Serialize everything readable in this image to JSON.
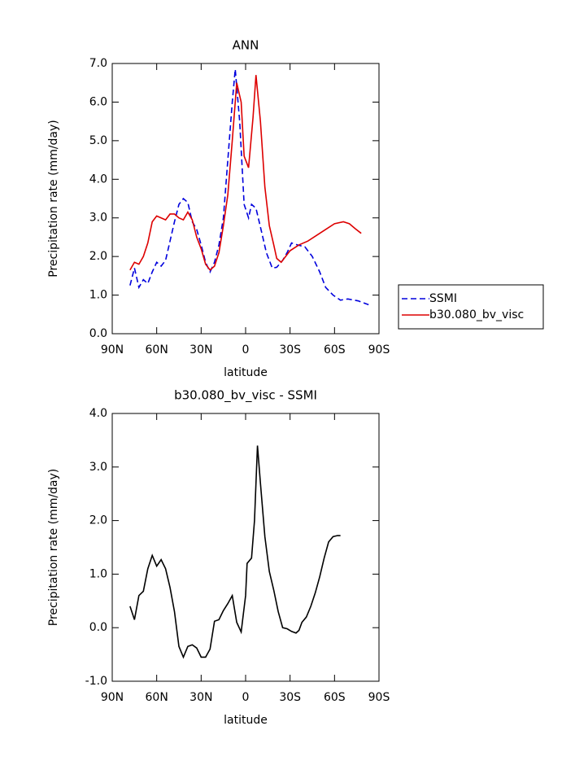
{
  "chart_data": [
    {
      "type": "line",
      "title": "ANN",
      "xlabel": "latitude",
      "ylabel": "Precipitation rate (mm/day)",
      "xlim": [
        90,
        -90
      ],
      "xticks": [
        {
          "value": 90,
          "label": "90N"
        },
        {
          "value": 60,
          "label": "60N"
        },
        {
          "value": 30,
          "label": "30N"
        },
        0,
        {
          "value": -30,
          "label": "30S"
        },
        {
          "value": -60,
          "label": "60S"
        },
        {
          "value": -90,
          "label": "90S"
        }
      ],
      "ylim": [
        0,
        7
      ],
      "yticks": [
        {
          "value": 0,
          "label": "0.0"
        },
        {
          "value": 1,
          "label": "1.0"
        },
        {
          "value": 2,
          "label": "2.0"
        },
        {
          "value": 3,
          "label": "3.0"
        },
        {
          "value": 4,
          "label": "4.0"
        },
        {
          "value": 5,
          "label": "5.0"
        },
        {
          "value": 6,
          "label": "6.0"
        },
        {
          "value": 7,
          "label": "7.0"
        }
      ],
      "legend": "outside right",
      "series": [
        {
          "name": "SSMI",
          "color": "#0000dd",
          "dash": true,
          "x": [
            78,
            75,
            72,
            69,
            66,
            63,
            60,
            57,
            54,
            51,
            48,
            45,
            42,
            39,
            36,
            33,
            30,
            27,
            24,
            21,
            18,
            15,
            12,
            9,
            7,
            4,
            1,
            -2,
            -4,
            -7,
            -11,
            -14,
            -18,
            -21,
            -25,
            -28,
            -31,
            -35,
            -40,
            -45,
            -50,
            -54,
            -59,
            -64,
            -69,
            -76,
            -83
          ],
          "values": [
            1.25,
            1.7,
            1.2,
            1.4,
            1.3,
            1.6,
            1.85,
            1.75,
            1.9,
            2.4,
            2.9,
            3.35,
            3.5,
            3.4,
            2.9,
            2.7,
            2.3,
            1.85,
            1.6,
            1.85,
            2.3,
            3.0,
            4.5,
            6.0,
            6.85,
            5.5,
            3.35,
            3.0,
            3.35,
            3.25,
            2.6,
            2.1,
            1.7,
            1.72,
            1.9,
            2.1,
            2.35,
            2.3,
            2.25,
            2.0,
            1.6,
            1.2,
            1.0,
            0.87,
            0.9,
            0.85,
            0.75
          ]
        },
        {
          "name": "b30.080_bv_visc",
          "color": "#dd0000",
          "dash": false,
          "x": [
            78,
            75,
            72,
            69,
            66,
            63,
            60,
            57,
            54,
            51,
            48,
            45,
            42,
            39,
            36,
            33,
            30,
            27,
            24,
            21,
            18,
            15,
            12,
            9,
            6,
            3,
            1,
            -2,
            -5,
            -7,
            -10,
            -13,
            -16,
            -19,
            -21,
            -24,
            -30,
            -36,
            -42,
            -48,
            -54,
            -60,
            -66,
            -70,
            -74,
            -78
          ],
          "values": [
            1.65,
            1.85,
            1.8,
            2.0,
            2.35,
            2.9,
            3.05,
            3.0,
            2.95,
            3.1,
            3.1,
            3.0,
            2.95,
            3.15,
            2.95,
            2.5,
            2.2,
            1.8,
            1.65,
            1.75,
            2.1,
            2.8,
            3.6,
            5.0,
            6.5,
            6.0,
            4.6,
            4.3,
            5.6,
            6.7,
            5.5,
            3.8,
            2.8,
            2.3,
            1.95,
            1.85,
            2.15,
            2.3,
            2.4,
            2.55,
            2.7,
            2.85,
            2.9,
            2.85,
            2.72,
            2.6
          ]
        }
      ]
    },
    {
      "type": "line",
      "title": "b30.080_bv_visc - SSMI",
      "xlabel": "latitude",
      "ylabel": "Precipitation rate (mm/day)",
      "xlim": [
        90,
        -90
      ],
      "xticks": [
        {
          "value": 90,
          "label": "90N"
        },
        {
          "value": 60,
          "label": "60N"
        },
        {
          "value": 30,
          "label": "30N"
        },
        0,
        {
          "value": -30,
          "label": "30S"
        },
        {
          "value": -60,
          "label": "60S"
        },
        {
          "value": -90,
          "label": "90S"
        }
      ],
      "ylim": [
        -1,
        4
      ],
      "yticks": [
        {
          "value": -1,
          "label": "-1.0"
        },
        {
          "value": 0,
          "label": "0.0"
        },
        {
          "value": 1,
          "label": "1.0"
        },
        {
          "value": 2,
          "label": "2.0"
        },
        {
          "value": 3,
          "label": "3.0"
        },
        {
          "value": 4,
          "label": "4.0"
        }
      ],
      "series": [
        {
          "color": "#000000",
          "dash": false,
          "x": [
            78,
            75,
            72,
            69,
            66,
            63,
            60,
            57,
            54,
            51,
            48,
            45,
            42,
            39,
            36,
            33,
            30,
            27,
            24,
            21,
            18,
            15,
            12,
            9,
            6,
            3,
            0,
            -1,
            -4,
            -6,
            -8,
            -10,
            -13,
            -16,
            -19,
            -22,
            -25,
            -28,
            -31,
            -34,
            -36,
            -38,
            -41,
            -44,
            -47,
            -50,
            -53,
            -56,
            -59,
            -62,
            -64
          ],
          "values": [
            0.4,
            0.15,
            0.6,
            0.68,
            1.1,
            1.35,
            1.15,
            1.27,
            1.1,
            0.75,
            0.3,
            -0.35,
            -0.55,
            -0.35,
            -0.32,
            -0.38,
            -0.55,
            -0.55,
            -0.4,
            0.12,
            0.15,
            0.32,
            0.45,
            0.6,
            0.1,
            -0.08,
            0.6,
            1.2,
            1.3,
            2.0,
            3.4,
            2.7,
            1.7,
            1.05,
            0.7,
            0.3,
            0.0,
            -0.02,
            -0.07,
            -0.1,
            -0.05,
            0.1,
            0.2,
            0.4,
            0.65,
            0.95,
            1.3,
            1.6,
            1.7,
            1.72,
            1.72
          ]
        }
      ]
    }
  ]
}
